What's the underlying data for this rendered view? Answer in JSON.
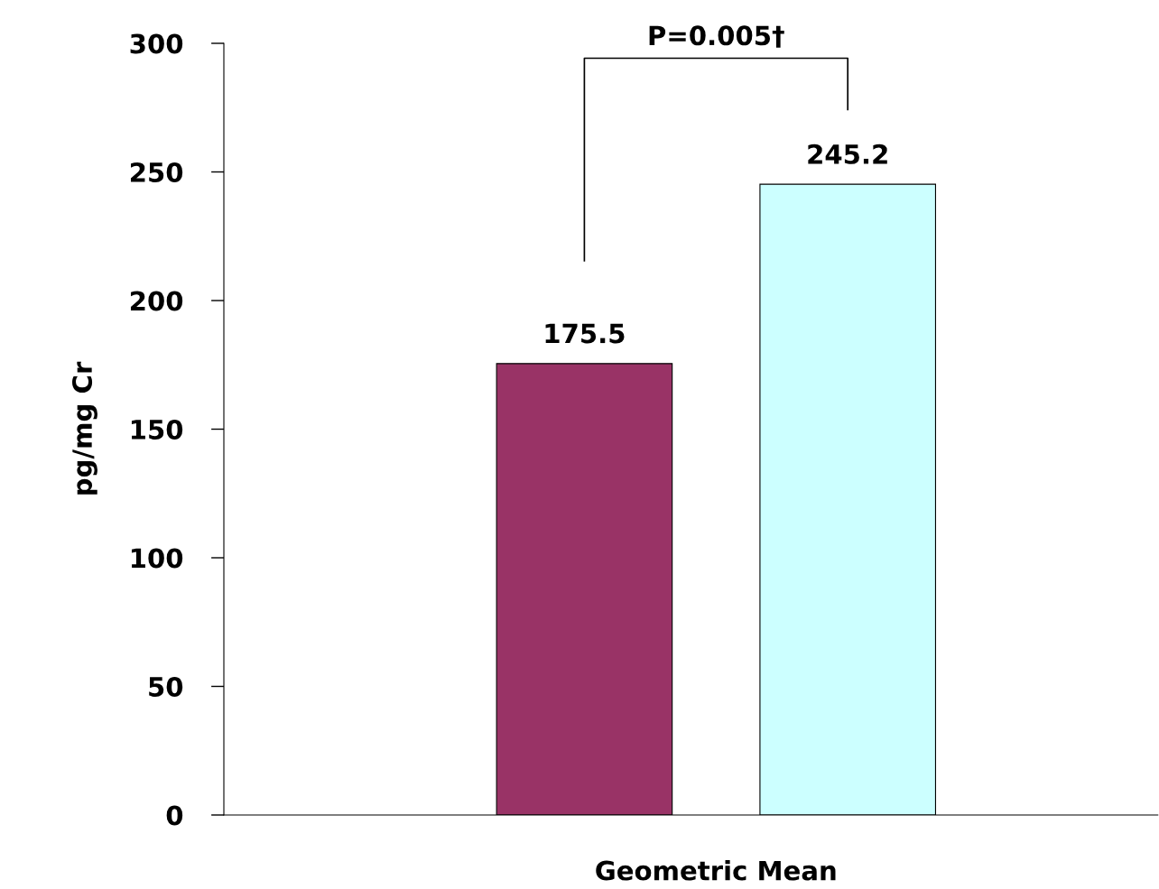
{
  "chart_data": {
    "type": "bar",
    "ylabel": "pg/mg Cr",
    "categories": [
      "Geometric Mean"
    ],
    "series": [
      {
        "color": "#993366",
        "values": [
          175.5
        ]
      },
      {
        "color": "#ccffff",
        "values": [
          245.2
        ]
      }
    ],
    "ylim": [
      0,
      300
    ],
    "yticks": [
      0,
      50,
      100,
      150,
      200,
      250,
      300
    ],
    "data_labels": true,
    "grid": false,
    "annotations": [
      "P=0.005†"
    ]
  }
}
